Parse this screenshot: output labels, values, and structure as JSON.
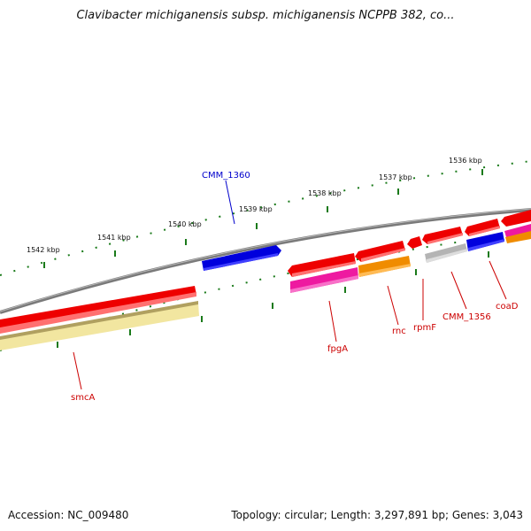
{
  "title": "Clavibacter michiganensis subsp. michiganensis NCPPB 382, co...",
  "footer": {
    "accession": "Accession: NC_009480",
    "stats": "Topology: circular; Length: 3,297,891 bp; Genes: 3,043"
  },
  "colors": {
    "backbone": "#7a7a7a",
    "tick": "#1a7a1a",
    "label_red": "#cc0000",
    "label_blue": "#0000cc",
    "gene_red": "#ee0000",
    "gene_magenta": "#ee1aa0",
    "gene_orange": "#f08c00",
    "gene_blue": "#0000dd",
    "gene_gray": "#b4b4b4",
    "gene_pale": "#f2e6a0"
  },
  "tick_labels": [
    "1542 kbp",
    "1541 kbp",
    "1540 kbp",
    "1539 kbp",
    "1538 kbp",
    "1537 kbp",
    "1536 kbp"
  ],
  "gene_labels": [
    "CMM_1360",
    "smcA",
    "fpgA",
    "rnc",
    "rpmF",
    "CMM_1356",
    "coaD"
  ]
}
